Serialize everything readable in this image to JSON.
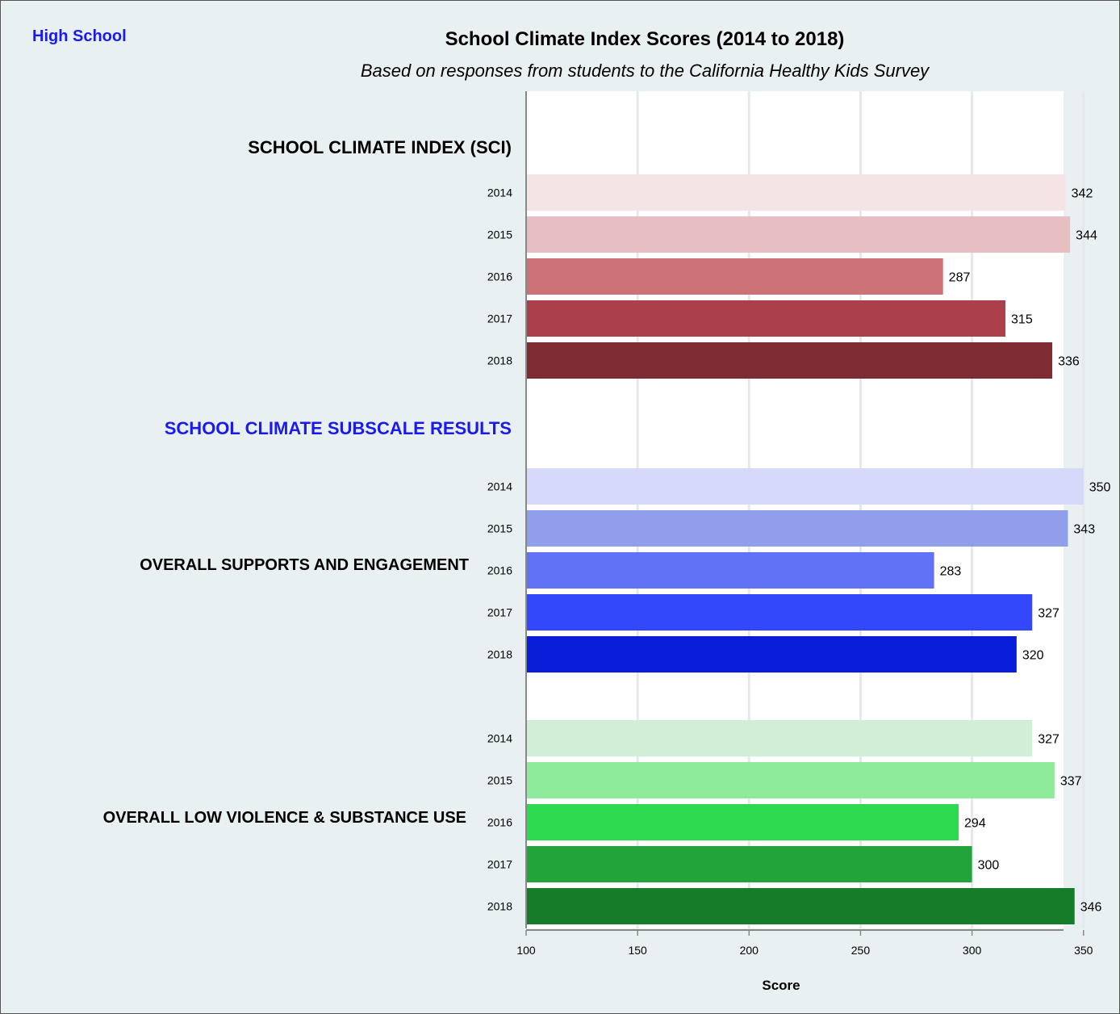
{
  "corner_label": "High School",
  "chart_data": {
    "type": "bar",
    "orientation": "horizontal",
    "title": "School Climate Index Scores (2014 to 2018)",
    "subtitle": "Based on responses from students to the California Healthy Kids Survey",
    "xlabel": "Score",
    "xlim": [
      100,
      580
    ],
    "xticks": [
      100,
      150,
      200,
      250,
      300,
      350,
      400,
      450,
      500,
      550
    ],
    "grid": "vertical",
    "subscale_heading": "SCHOOL CLIMATE SUBSCALE RESULTS",
    "subscale_heading_color": "#1a1aee",
    "groups": [
      {
        "name": "SCHOOL CLIMATE INDEX (SCI)",
        "categories": [
          "2014",
          "2015",
          "2016",
          "2017",
          "2018"
        ],
        "values": [
          342,
          344,
          287,
          315,
          336
        ],
        "colors": [
          "#f4e4e5",
          "#e7bfc3",
          "#cc7276",
          "#ab404a",
          "#7e2b34"
        ]
      },
      {
        "name": "OVERALL SUPPORTS AND ENGAGEMENT",
        "categories": [
          "2014",
          "2015",
          "2016",
          "2017",
          "2018"
        ],
        "values": [
          350,
          343,
          283,
          327,
          320
        ],
        "colors": [
          "#d6d9f9",
          "#909fea",
          "#6272f6",
          "#3448fb",
          "#0a1ed9"
        ]
      },
      {
        "name": "OVERALL LOW VIOLENCE & SUBSTANCE USE",
        "categories": [
          "2014",
          "2015",
          "2016",
          "2017",
          "2018"
        ],
        "values": [
          327,
          337,
          294,
          300,
          346
        ],
        "colors": [
          "#d1eed6",
          "#8feb9c",
          "#2dd94d",
          "#22a43a",
          "#167c2a"
        ]
      }
    ]
  }
}
